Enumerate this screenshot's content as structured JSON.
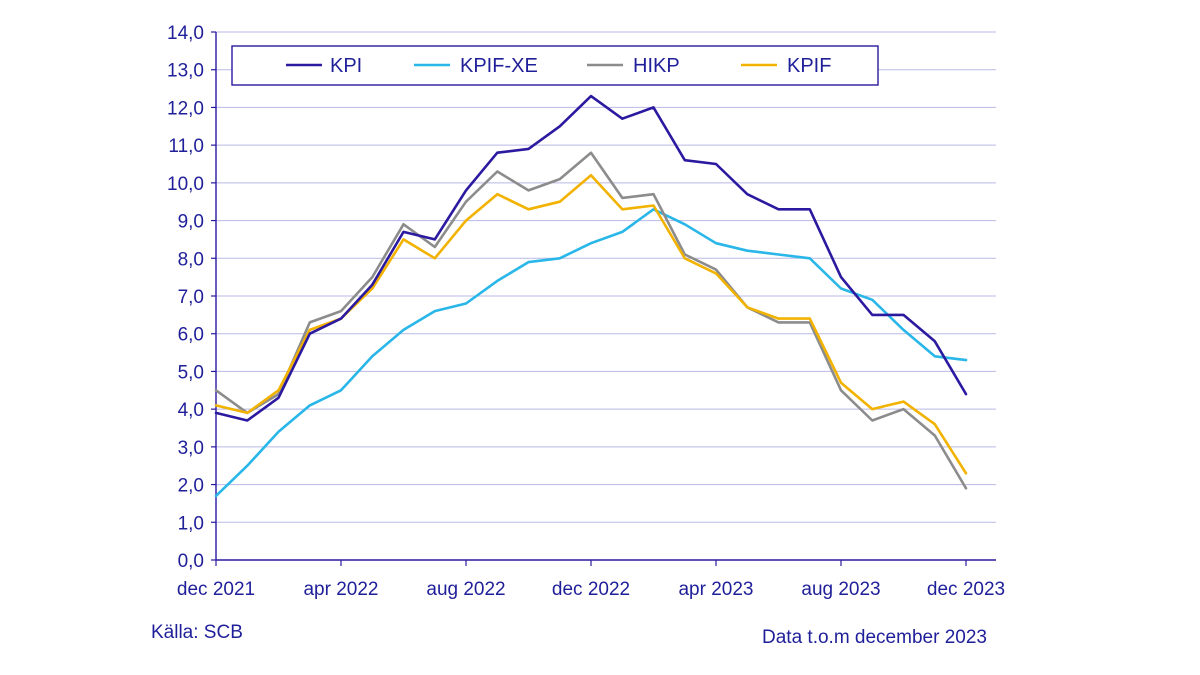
{
  "chart_data": {
    "type": "line",
    "title": "",
    "xlabel": "",
    "ylabel": "",
    "ylim": [
      0,
      14
    ],
    "y_ticks": [
      "0,0",
      "1,0",
      "2,0",
      "3,0",
      "4,0",
      "5,0",
      "6,0",
      "7,0",
      "8,0",
      "9,0",
      "10,0",
      "11,0",
      "12,0",
      "13,0",
      "14,0"
    ],
    "x_ticks": [
      {
        "index": 0,
        "label": "dec 2021"
      },
      {
        "index": 4,
        "label": "apr 2022"
      },
      {
        "index": 8,
        "label": "aug 2022"
      },
      {
        "index": 12,
        "label": "dec 2022"
      },
      {
        "index": 16,
        "label": "apr 2023"
      },
      {
        "index": 20,
        "label": "aug 2023"
      },
      {
        "index": 24,
        "label": "dec 2023"
      }
    ],
    "categories": [
      "dec 2021",
      "jan 2022",
      "feb 2022",
      "mar 2022",
      "apr 2022",
      "maj 2022",
      "jun 2022",
      "jul 2022",
      "aug 2022",
      "sep 2022",
      "okt 2022",
      "nov 2022",
      "dec 2022",
      "jan 2023",
      "feb 2023",
      "mar 2023",
      "apr 2023",
      "maj 2023",
      "jun 2023",
      "jul 2023",
      "aug 2023",
      "sep 2023",
      "okt 2023",
      "nov 2023",
      "dec 2023"
    ],
    "grid": true,
    "legend_position": "top",
    "series": [
      {
        "name": "KPI",
        "color": "#2b1aa0",
        "values": [
          3.9,
          3.7,
          4.3,
          6.0,
          6.4,
          7.3,
          8.7,
          8.5,
          9.8,
          10.8,
          10.9,
          11.5,
          12.3,
          11.7,
          12.0,
          10.6,
          10.5,
          9.7,
          9.3,
          9.3,
          7.5,
          6.5,
          6.5,
          5.8,
          4.4
        ]
      },
      {
        "name": "KPIF-XE",
        "color": "#29b6e8",
        "values": [
          1.7,
          2.5,
          3.4,
          4.1,
          4.5,
          5.4,
          6.1,
          6.6,
          6.8,
          7.4,
          7.9,
          8.0,
          8.4,
          8.7,
          9.3,
          8.9,
          8.4,
          8.2,
          8.1,
          8.0,
          7.2,
          6.9,
          6.1,
          5.4,
          5.3
        ]
      },
      {
        "name": "HIKP",
        "color": "#8c8c8c",
        "values": [
          4.5,
          3.9,
          4.4,
          6.3,
          6.6,
          7.5,
          8.9,
          8.3,
          9.5,
          10.3,
          9.8,
          10.1,
          10.8,
          9.6,
          9.7,
          8.1,
          7.7,
          6.7,
          6.3,
          6.3,
          4.5,
          3.7,
          4.0,
          3.3,
          1.9
        ]
      },
      {
        "name": "KPIF",
        "color": "#f2b200",
        "values": [
          4.1,
          3.9,
          4.5,
          6.1,
          6.4,
          7.2,
          8.5,
          8.0,
          9.0,
          9.7,
          9.3,
          9.5,
          10.2,
          9.3,
          9.4,
          8.0,
          7.6,
          6.7,
          6.4,
          6.4,
          4.7,
          4.0,
          4.2,
          3.6,
          2.3
        ]
      }
    ]
  },
  "footer": {
    "source": "Källa: SCB",
    "data_note": "Data t.o.m december 2023"
  }
}
